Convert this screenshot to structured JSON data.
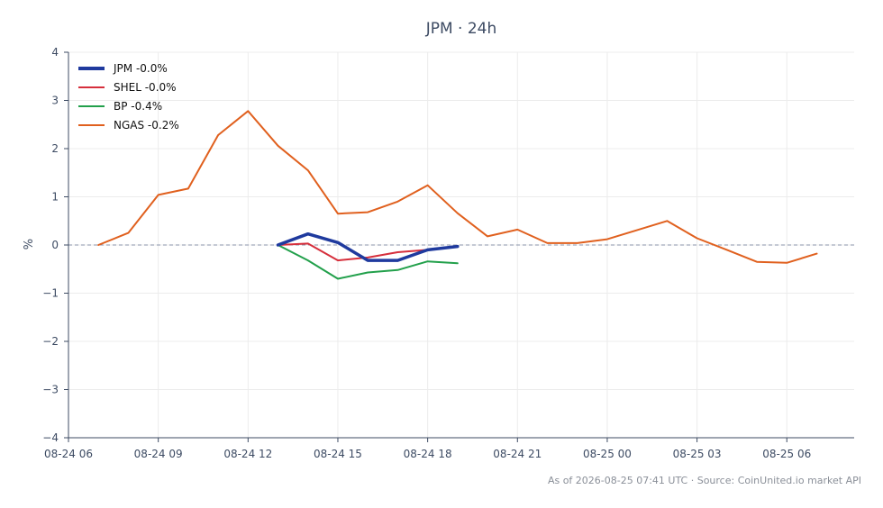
{
  "footer": "As of 2026-08-25 07:41 UTC · Source: CoinUnited.io market API",
  "chart_data": {
    "type": "line",
    "title": "JPM · 24h",
    "xlabel": "",
    "ylabel": "%",
    "ylim": [
      -4,
      4
    ],
    "xlim": [
      "08-24 06:00",
      "08-25 08:15"
    ],
    "yticks": [
      "4",
      "3",
      "2",
      "1",
      "0",
      "−1",
      "−2",
      "−3",
      "−4"
    ],
    "ytick_values": [
      4,
      3,
      2,
      1,
      0,
      -1,
      -2,
      -3,
      -4
    ],
    "xticks": [
      "08-24 06",
      "08-24 09",
      "08-24 12",
      "08-24 15",
      "08-24 18",
      "08-24 21",
      "08-25 00",
      "08-25 03",
      "08-25 06"
    ],
    "xtick_values": [
      "08-24 06:00",
      "08-24 09:00",
      "08-24 12:00",
      "08-24 15:00",
      "08-24 18:00",
      "08-24 21:00",
      "08-25 00:00",
      "08-25 03:00",
      "08-25 06:00"
    ],
    "grid": true,
    "zero_line": true,
    "legend_position": "top-left",
    "series": [
      {
        "name": "JPM -0.0%",
        "color": "#1f3a9e",
        "x": [
          "08-24 13:00",
          "08-24 14:00",
          "08-24 15:00",
          "08-24 16:00",
          "08-24 17:00",
          "08-24 18:00",
          "08-24 19:00"
        ],
        "y": [
          0.0,
          0.23,
          0.05,
          -0.32,
          -0.32,
          -0.1,
          -0.03
        ]
      },
      {
        "name": "SHEL -0.0%",
        "color": "#d62f3c",
        "x": [
          "08-24 13:00",
          "08-24 14:00",
          "08-24 15:00",
          "08-24 16:00",
          "08-24 17:00",
          "08-24 18:00",
          "08-24 19:00"
        ],
        "y": [
          0.0,
          0.03,
          -0.32,
          -0.26,
          -0.15,
          -0.1,
          -0.02
        ]
      },
      {
        "name": "BP -0.4%",
        "color": "#22a04b",
        "x": [
          "08-24 13:00",
          "08-24 14:00",
          "08-24 15:00",
          "08-24 16:00",
          "08-24 17:00",
          "08-24 18:00",
          "08-24 19:00"
        ],
        "y": [
          0.0,
          -0.32,
          -0.7,
          -0.57,
          -0.52,
          -0.34,
          -0.38
        ]
      },
      {
        "name": "NGAS -0.2%",
        "color": "#e0601e",
        "x": [
          "08-24 07:00",
          "08-24 08:00",
          "08-24 09:00",
          "08-24 10:00",
          "08-24 11:00",
          "08-24 12:00",
          "08-24 13:00",
          "08-24 14:00",
          "08-24 15:00",
          "08-24 16:00",
          "08-24 17:00",
          "08-24 18:00",
          "08-24 19:00",
          "08-24 20:00",
          "08-24 21:00",
          "08-24 22:00",
          "08-24 23:00",
          "08-25 00:00",
          "08-25 01:00",
          "08-25 02:00",
          "08-25 03:00",
          "08-25 04:00",
          "08-25 05:00",
          "08-25 06:00",
          "08-25 07:00"
        ],
        "y": [
          0.0,
          0.25,
          1.04,
          1.17,
          2.28,
          2.78,
          2.06,
          1.55,
          0.65,
          0.68,
          0.9,
          1.24,
          0.66,
          0.18,
          0.32,
          0.04,
          0.04,
          0.12,
          0.31,
          0.5,
          0.14,
          -0.1,
          -0.35,
          -0.37,
          -0.18
        ]
      }
    ]
  }
}
